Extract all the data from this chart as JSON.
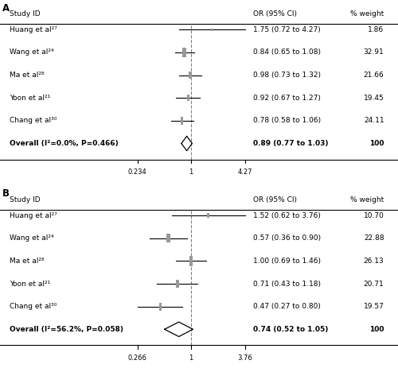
{
  "panel_A": {
    "label": "A",
    "studies": [
      "Huang et al²⁷",
      "Wang et al²⁴",
      "Ma et al²⁸",
      "Yoon et al²¹",
      "Chang et al³⁰"
    ],
    "or": [
      1.75,
      0.84,
      0.98,
      0.92,
      0.78
    ],
    "ci_low": [
      0.72,
      0.65,
      0.73,
      0.67,
      0.58
    ],
    "ci_high": [
      4.27,
      1.08,
      1.32,
      1.27,
      1.06
    ],
    "weights": [
      1.86,
      32.91,
      21.66,
      19.45,
      24.11
    ],
    "or_text": [
      "1.75 (0.72 to 4.27)",
      "0.84 (0.65 to 1.08)",
      "0.98 (0.73 to 1.32)",
      "0.92 (0.67 to 1.27)",
      "0.78 (0.58 to 1.06)"
    ],
    "weight_text": [
      "1.86",
      "32.91",
      "21.66",
      "19.45",
      "24.11"
    ],
    "overall_or": 0.89,
    "overall_ci_low": 0.77,
    "overall_ci_high": 1.03,
    "overall_text": "0.89 (0.77 to 1.03)",
    "overall_label": "Overall (I²=0.0%, P=0.466)",
    "xmin": 0.234,
    "xmax": 4.27,
    "xtick_labels": [
      "0.234",
      "1",
      "4.27"
    ],
    "xtick_vals": [
      0.234,
      1.0,
      4.27
    ]
  },
  "panel_B": {
    "label": "B",
    "studies": [
      "Huang et al²⁷",
      "Wang et al²⁴",
      "Ma et al²⁸",
      "Yoon et al²¹",
      "Chang et al³⁰"
    ],
    "or": [
      1.52,
      0.57,
      1.0,
      0.71,
      0.47
    ],
    "ci_low": [
      0.62,
      0.36,
      0.69,
      0.43,
      0.27
    ],
    "ci_high": [
      3.76,
      0.9,
      1.46,
      1.18,
      0.8
    ],
    "weights": [
      10.7,
      22.88,
      26.13,
      20.71,
      19.57
    ],
    "or_text": [
      "1.52 (0.62 to 3.76)",
      "0.57 (0.36 to 0.90)",
      "1.00 (0.69 to 1.46)",
      "0.71 (0.43 to 1.18)",
      "0.47 (0.27 to 0.80)"
    ],
    "weight_text": [
      "10.70",
      "22.88",
      "26.13",
      "20.71",
      "19.57"
    ],
    "overall_or": 0.74,
    "overall_ci_low": 0.52,
    "overall_ci_high": 1.05,
    "overall_text": "0.74 (0.52 to 1.05)",
    "overall_label": "Overall (I²=56.2%, P=0.058)",
    "xmin": 0.266,
    "xmax": 3.76,
    "xtick_labels": [
      "0.266",
      "1",
      "3.76"
    ],
    "xtick_vals": [
      0.266,
      1.0,
      3.76
    ]
  }
}
